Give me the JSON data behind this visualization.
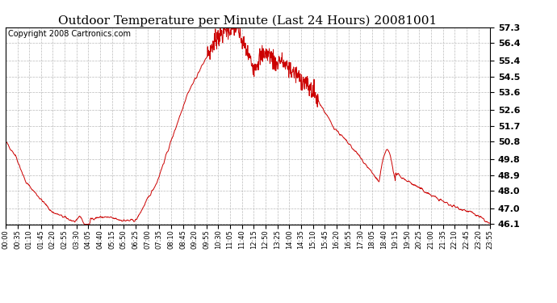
{
  "title": "Outdoor Temperature per Minute (Last 24 Hours) 20081001",
  "copyright_text": "Copyright 2008 Cartronics.com",
  "line_color": "#cc0000",
  "background_color": "#ffffff",
  "grid_color": "#bbbbbb",
  "ylim": [
    46.1,
    57.3
  ],
  "yticks": [
    46.1,
    47.0,
    48.0,
    48.9,
    49.8,
    50.8,
    51.7,
    52.6,
    53.6,
    54.5,
    55.4,
    56.4,
    57.3
  ],
  "xtick_labels": [
    "00:00",
    "00:35",
    "01:10",
    "01:45",
    "02:20",
    "02:55",
    "03:30",
    "04:05",
    "04:40",
    "05:15",
    "05:50",
    "06:25",
    "07:00",
    "07:35",
    "08:10",
    "08:45",
    "09:20",
    "09:55",
    "10:30",
    "11:05",
    "11:40",
    "12:15",
    "12:50",
    "13:25",
    "14:00",
    "14:35",
    "15:10",
    "15:45",
    "16:20",
    "16:55",
    "17:30",
    "18:05",
    "18:40",
    "19:15",
    "19:50",
    "20:25",
    "21:00",
    "21:35",
    "22:10",
    "22:45",
    "23:20",
    "23:55"
  ],
  "num_points": 1440,
  "title_fontsize": 11,
  "copyright_fontsize": 7,
  "ytick_fontsize": 8,
  "xtick_fontsize": 6
}
